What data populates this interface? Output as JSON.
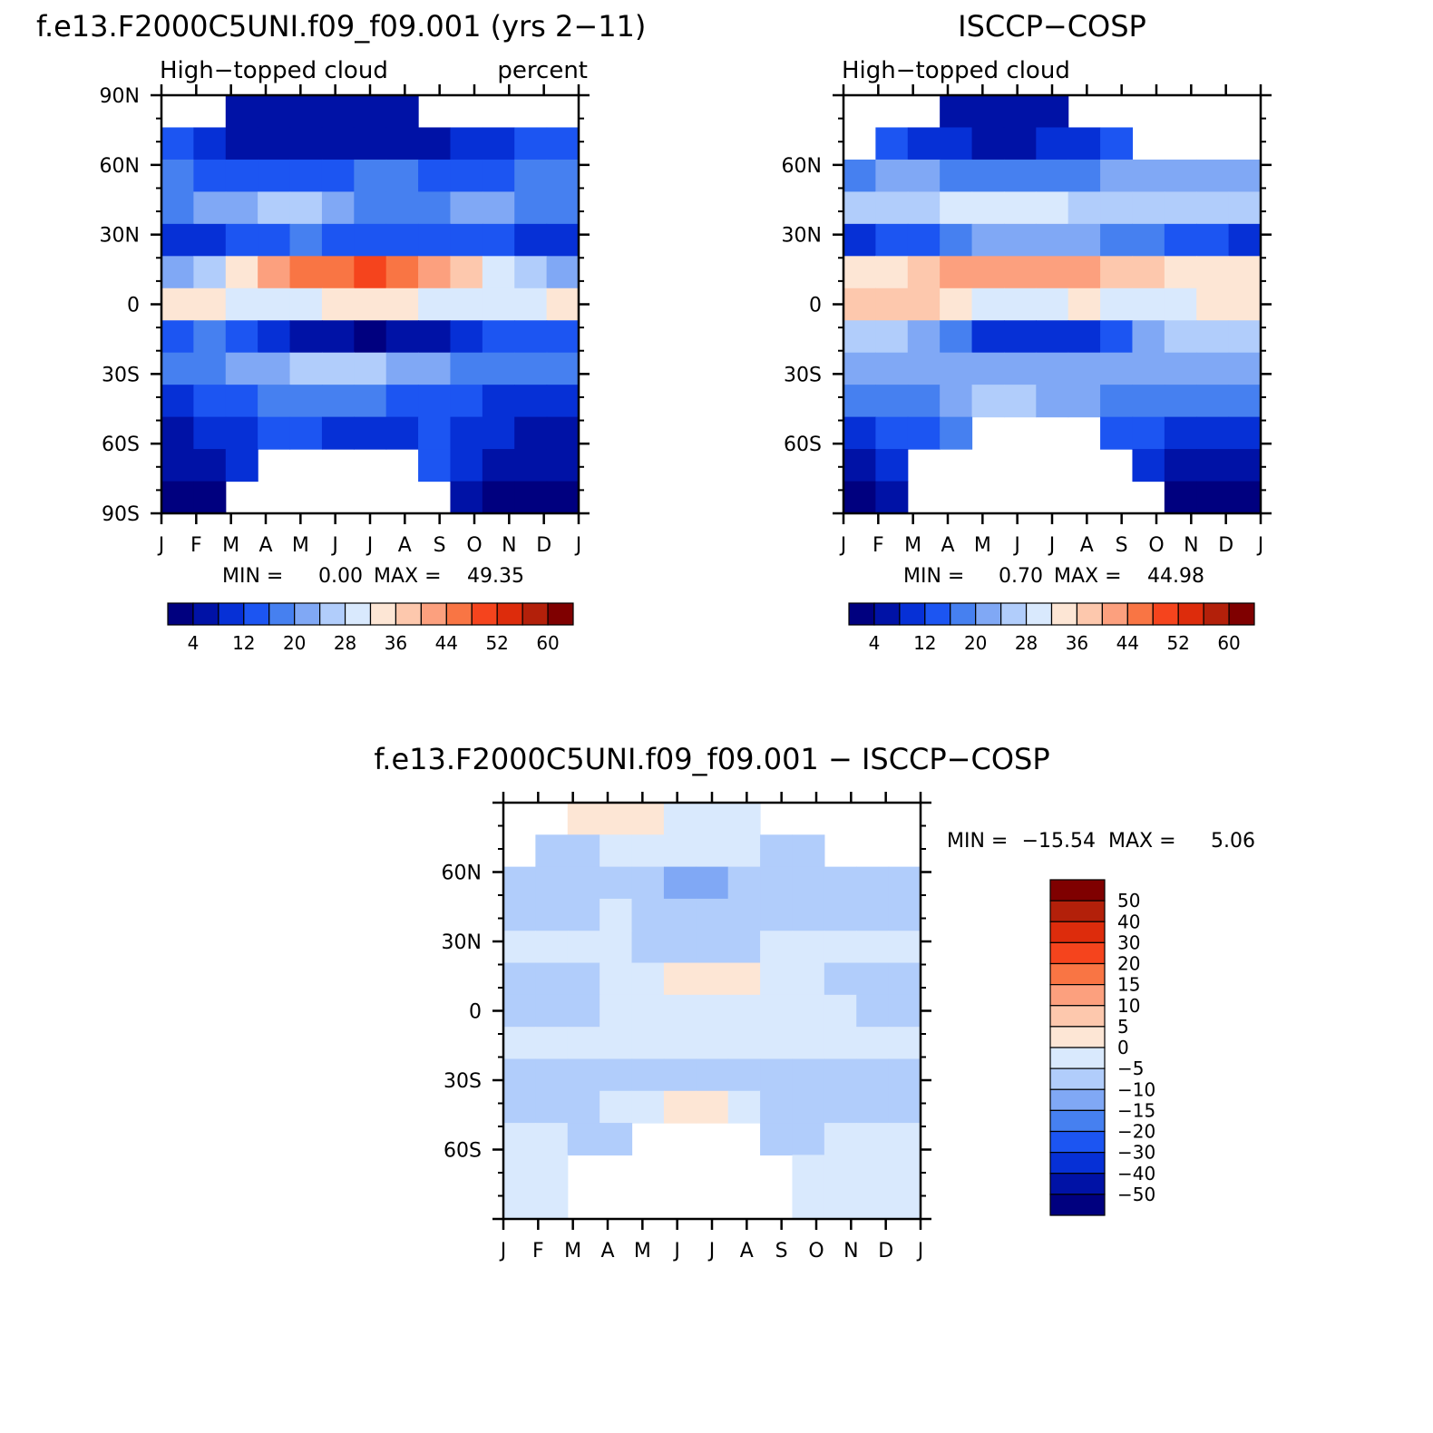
{
  "chart_data": [
    {
      "type": "heatmap",
      "title": "f.e13.F2000C5UNI.f09_f09.001 (yrs 2−11)",
      "subtitle_left": "High−topped cloud",
      "subtitle_right": "percent",
      "x_ticks": [
        "J",
        "F",
        "M",
        "A",
        "M",
        "J",
        "J",
        "A",
        "S",
        "O",
        "N",
        "D",
        "J"
      ],
      "y_ticks": [
        "90N",
        "60N",
        "30N",
        "0",
        "30S",
        "60S",
        "90S"
      ],
      "stats": {
        "min_label": "MIN =",
        "min": "0.00",
        "max_label": "MAX =",
        "max": "49.35"
      },
      "legend_labels": [
        "4",
        "12",
        "20",
        "28",
        "36",
        "44",
        "52",
        "60"
      ],
      "colors": [
        "#00007f",
        "#0012a6",
        "#0630d6",
        "#1c55f2",
        "#4680f0",
        "#80a8f5",
        "#b1cdfb",
        "#d9e9fd",
        "#fde6d5",
        "#fdc8ad",
        "#fca07e",
        "#f97544",
        "#f5441d",
        "#dd2c0c",
        "#b3200a",
        "#7f0000"
      ],
      "levels_min": 0,
      "levels_step": 4,
      "cols": [
        "J",
        "F",
        "M",
        "A",
        "M",
        "J",
        "J",
        "A",
        "S",
        "O",
        "N",
        "D",
        "J"
      ],
      "rows": [
        "90N",
        "75N",
        "60N",
        "45N",
        "30N",
        "15N",
        "0",
        "15S",
        "30S",
        "45S",
        "60S",
        "75S",
        "90S"
      ],
      "values": [
        [
          null,
          null,
          5,
          5,
          5,
          5,
          5,
          5,
          null,
          null,
          null,
          null,
          null
        ],
        [
          12,
          9,
          7,
          5,
          4,
          4,
          4,
          5,
          6,
          8,
          10,
          12,
          12
        ],
        [
          16,
          15,
          14,
          15,
          15,
          15,
          16,
          16,
          15,
          15,
          15,
          16,
          16
        ],
        [
          18,
          20,
          22,
          25,
          24,
          20,
          18,
          18,
          19,
          21,
          20,
          19,
          18
        ],
        [
          8,
          11,
          14,
          15,
          16,
          15,
          14,
          14,
          14,
          15,
          13,
          10,
          8
        ],
        [
          22,
          26,
          32,
          40,
          44,
          46,
          48,
          46,
          42,
          38,
          30,
          24,
          22
        ],
        [
          32,
          34,
          30,
          28,
          30,
          32,
          32,
          32,
          30,
          30,
          28,
          30,
          32
        ],
        [
          14,
          16,
          12,
          8,
          5,
          4,
          3,
          4,
          6,
          10,
          12,
          14,
          14
        ],
        [
          16,
          18,
          20,
          22,
          24,
          26,
          25,
          22,
          20,
          18,
          17,
          16,
          16
        ],
        [
          10,
          12,
          14,
          16,
          16,
          17,
          16,
          15,
          14,
          12,
          11,
          10,
          10
        ],
        [
          6,
          8,
          10,
          12,
          12,
          10,
          10,
          11,
          12,
          10,
          8,
          6,
          6
        ],
        [
          4,
          6,
          10,
          null,
          null,
          null,
          null,
          null,
          12,
          8,
          6,
          4,
          4
        ],
        [
          2,
          3,
          null,
          null,
          null,
          null,
          null,
          null,
          null,
          4,
          3,
          2,
          2
        ]
      ]
    },
    {
      "type": "heatmap",
      "title": "ISCCP−COSP",
      "subtitle_left": "High−topped cloud",
      "subtitle_right": "",
      "x_ticks": [
        "J",
        "F",
        "M",
        "A",
        "M",
        "J",
        "J",
        "A",
        "S",
        "O",
        "N",
        "D",
        "J"
      ],
      "y_ticks": [
        "",
        "60N",
        "30N",
        "0",
        "30S",
        "60S",
        ""
      ],
      "stats": {
        "min_label": "MIN =",
        "min": "0.70",
        "max_label": "MAX =",
        "max": "44.98"
      },
      "legend_labels": [
        "4",
        "12",
        "20",
        "28",
        "36",
        "44",
        "52",
        "60"
      ],
      "colors": [
        "#00007f",
        "#0012a6",
        "#0630d6",
        "#1c55f2",
        "#4680f0",
        "#80a8f5",
        "#b1cdfb",
        "#d9e9fd",
        "#fde6d5",
        "#fdc8ad",
        "#fca07e",
        "#f97544",
        "#f5441d",
        "#dd2c0c",
        "#b3200a",
        "#7f0000"
      ],
      "levels_min": 0,
      "levels_step": 4,
      "cols": [
        "J",
        "F",
        "M",
        "A",
        "M",
        "J",
        "J",
        "A",
        "S",
        "O",
        "N",
        "D",
        "J"
      ],
      "rows": [
        "90N",
        "75N",
        "60N",
        "45N",
        "30N",
        "15N",
        "0",
        "15S",
        "30S",
        "45S",
        "60S",
        "75S",
        "90S"
      ],
      "values": [
        [
          null,
          null,
          null,
          4,
          4,
          4,
          4,
          null,
          null,
          null,
          null,
          null,
          null
        ],
        [
          null,
          12,
          10,
          8,
          6,
          6,
          8,
          10,
          12,
          null,
          null,
          null,
          null
        ],
        [
          18,
          20,
          20,
          18,
          16,
          16,
          17,
          19,
          20,
          22,
          21,
          20,
          20
        ],
        [
          24,
          25,
          27,
          28,
          29,
          29,
          28,
          26,
          25,
          24,
          24,
          25,
          25
        ],
        [
          10,
          12,
          14,
          18,
          20,
          21,
          21,
          20,
          18,
          17,
          14,
          12,
          10
        ],
        [
          32,
          34,
          38,
          40,
          42,
          42,
          42,
          40,
          38,
          36,
          34,
          32,
          32
        ],
        [
          38,
          38,
          36,
          32,
          30,
          30,
          31,
          32,
          30,
          30,
          30,
          32,
          34
        ],
        [
          24,
          26,
          22,
          16,
          10,
          8,
          8,
          10,
          14,
          20,
          24,
          26,
          24
        ],
        [
          20,
          20,
          20,
          22,
          22,
          22,
          22,
          21,
          20,
          20,
          20,
          20,
          20
        ],
        [
          16,
          16,
          18,
          20,
          24,
          24,
          22,
          20,
          18,
          16,
          16,
          16,
          16
        ],
        [
          10,
          12,
          14,
          16,
          null,
          null,
          null,
          null,
          14,
          12,
          10,
          8,
          8
        ],
        [
          6,
          8,
          null,
          null,
          null,
          null,
          null,
          null,
          null,
          8,
          6,
          4,
          4
        ],
        [
          3,
          4,
          null,
          null,
          null,
          null,
          null,
          null,
          null,
          null,
          3,
          2,
          2
        ]
      ]
    },
    {
      "type": "heatmap",
      "title": "f.e13.F2000C5UNI.f09_f09.001 − ISCCP−COSP",
      "subtitle_left": "",
      "subtitle_right": "",
      "x_ticks": [
        "J",
        "F",
        "M",
        "A",
        "M",
        "J",
        "J",
        "A",
        "S",
        "O",
        "N",
        "D",
        "J"
      ],
      "y_ticks": [
        "",
        "60N",
        "30N",
        "0",
        "30S",
        "60S",
        ""
      ],
      "stats": {
        "min_label": "MIN =",
        "min": "−15.54",
        "max_label": "MAX =",
        "max": "5.06"
      },
      "legend_labels": [
        "50",
        "40",
        "30",
        "20",
        "15",
        "10",
        "5",
        "0",
        "−5",
        "−10",
        "−15",
        "−20",
        "−30",
        "−40",
        "−50"
      ],
      "colors": [
        "#7f0000",
        "#b3200a",
        "#dd2c0c",
        "#f5441d",
        "#f97544",
        "#fca07e",
        "#fdc8ad",
        "#fde6d5",
        "#d9e9fd",
        "#b1cdfb",
        "#80a8f5",
        "#4680f0",
        "#1c55f2",
        "#0630d6",
        "#0012a6",
        "#00007f"
      ],
      "levels": [
        50,
        40,
        30,
        20,
        15,
        10,
        5,
        0,
        -5,
        -10,
        -15,
        -20,
        -30,
        -40,
        -50
      ],
      "cols": [
        "J",
        "F",
        "M",
        "A",
        "M",
        "J",
        "J",
        "A",
        "S",
        "O",
        "N",
        "D",
        "J"
      ],
      "rows": [
        "90N",
        "75N",
        "60N",
        "45N",
        "30N",
        "15N",
        "0",
        "15S",
        "30S",
        "45S",
        "60S",
        "75S",
        "90S"
      ],
      "values": [
        [
          null,
          null,
          2,
          3,
          2,
          -2,
          -2,
          -3,
          null,
          null,
          null,
          null,
          null
        ],
        [
          null,
          -7,
          -6,
          -5,
          -5,
          -4,
          -4,
          -5,
          -6,
          -7,
          null,
          null,
          null
        ],
        [
          -8,
          -8,
          -8,
          -9,
          -10,
          -11,
          -11,
          -10,
          -9,
          -8,
          -8,
          -8,
          -8
        ],
        [
          -7,
          -7,
          -6,
          -2,
          -6,
          -8,
          -9,
          -9,
          -8,
          -7,
          -6,
          -6,
          -6
        ],
        [
          -4,
          -4,
          -5,
          -5,
          -6,
          -6,
          -6,
          -6,
          -5,
          -5,
          -5,
          -4,
          -4
        ],
        [
          -6,
          -6,
          -7,
          -3,
          -1,
          2,
          3,
          2,
          -3,
          -5,
          -6,
          -6,
          -6
        ],
        [
          -7,
          -6,
          -6,
          -5,
          -5,
          -4,
          -3,
          -3,
          -4,
          -4,
          -5,
          -6,
          -6
        ],
        [
          -3,
          -4,
          -4,
          -5,
          -4,
          -3,
          -3,
          -4,
          -4,
          -4,
          -4,
          -3,
          -3
        ],
        [
          -7,
          -7,
          -8,
          -8,
          -9,
          -9,
          -9,
          -8,
          -8,
          -8,
          -7,
          -7,
          -7
        ],
        [
          -8,
          -8,
          -8,
          -4,
          -2,
          2,
          1,
          -3,
          -6,
          -8,
          -8,
          -8,
          -8
        ],
        [
          -4,
          -5,
          -7,
          -8,
          null,
          null,
          null,
          null,
          -8,
          -6,
          -5,
          -4,
          -4
        ],
        [
          -3,
          -4,
          null,
          null,
          null,
          null,
          null,
          null,
          null,
          -4,
          -3,
          -3,
          -3
        ],
        [
          -2,
          -3,
          null,
          null,
          null,
          null,
          null,
          null,
          null,
          -3,
          -2,
          -2,
          -2
        ]
      ]
    }
  ]
}
